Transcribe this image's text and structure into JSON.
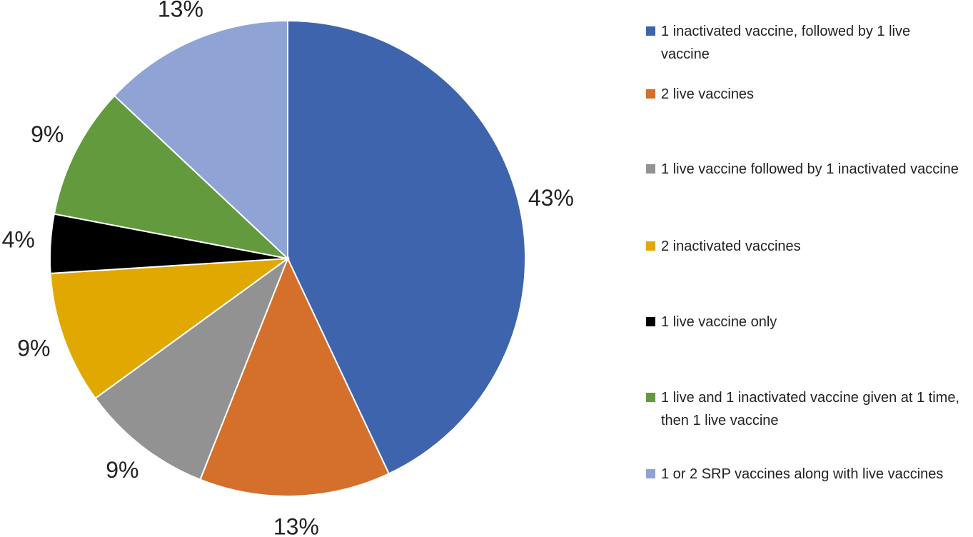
{
  "chart_data": {
    "type": "pie",
    "categories": [
      "1 inactivated vaccine, followed by 1 live vaccine",
      "2 live vaccines",
      "1 live vaccine followed by 1 inactivated vaccine",
      "2 inactivated vaccines",
      "1 live vaccine only",
      "1 live and 1 inactivated vaccine given at 1 time, then 1 live vaccine",
      "1 or 2 SRP vaccines along with live vaccines"
    ],
    "values": [
      43,
      13,
      9,
      9,
      4,
      9,
      13
    ],
    "value_labels": [
      "43%",
      "13%",
      "9%",
      "9%",
      "4%",
      "9%",
      "13%"
    ],
    "colors": [
      "#3e64ad",
      "#d4702c",
      "#929292",
      "#e0a800",
      "#000000",
      "#629a3d",
      "#8fa3d4"
    ],
    "legend": "right"
  }
}
